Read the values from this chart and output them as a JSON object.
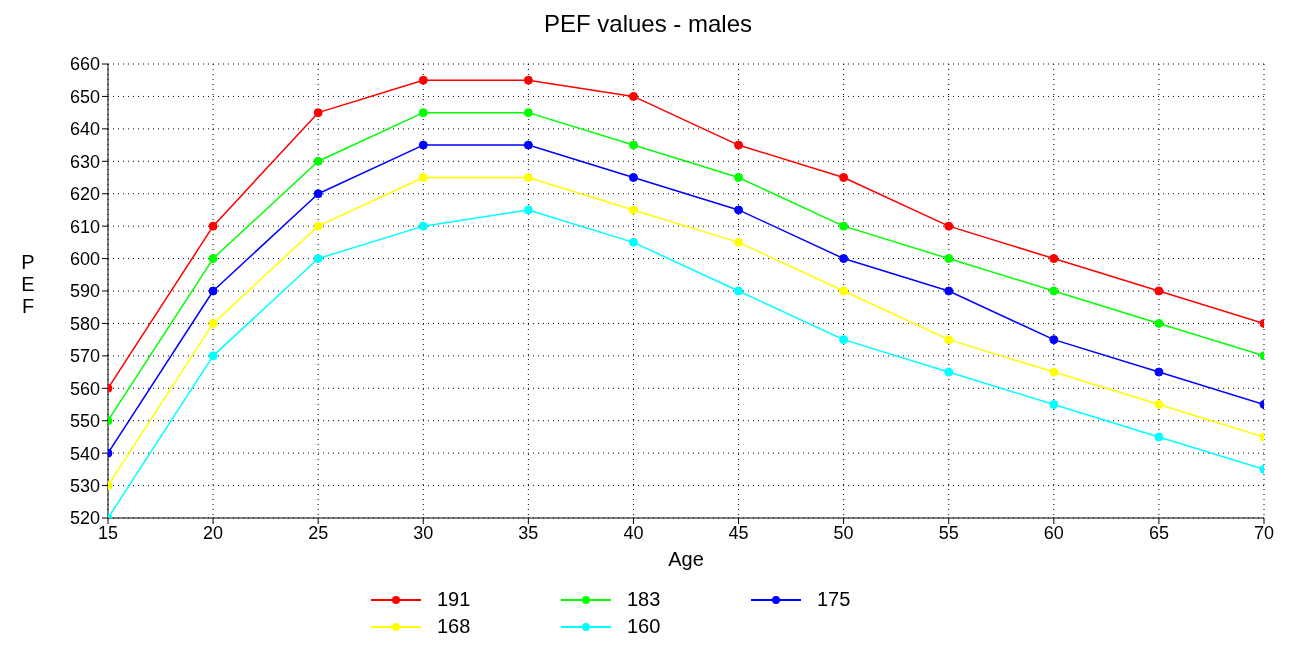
{
  "chart_data": {
    "type": "line",
    "title": "PEF values - males",
    "xlabel": "Age",
    "ylabel": "P E F",
    "x": [
      15,
      20,
      25,
      30,
      35,
      40,
      45,
      50,
      55,
      60,
      65,
      70
    ],
    "series": [
      {
        "name": "191",
        "color": "#ff0000",
        "values": [
          560,
          610,
          645,
          655,
          655,
          650,
          635,
          625,
          610,
          600,
          590,
          580
        ]
      },
      {
        "name": "183",
        "color": "#00ff00",
        "values": [
          550,
          600,
          630,
          645,
          645,
          635,
          625,
          610,
          600,
          590,
          580,
          570
        ]
      },
      {
        "name": "175",
        "color": "#0000ff",
        "values": [
          540,
          590,
          620,
          635,
          635,
          625,
          615,
          600,
          590,
          575,
          565,
          555
        ]
      },
      {
        "name": "168",
        "color": "#ffff00",
        "values": [
          530,
          580,
          610,
          625,
          625,
          615,
          605,
          590,
          575,
          565,
          555,
          545
        ]
      },
      {
        "name": "160",
        "color": "#00ffff",
        "values": [
          520,
          570,
          600,
          610,
          615,
          605,
          590,
          575,
          565,
          555,
          545,
          535
        ]
      }
    ],
    "xlim": [
      15,
      70
    ],
    "xticks": [
      15,
      20,
      25,
      30,
      35,
      40,
      45,
      50,
      55,
      60,
      65,
      70
    ],
    "ylim": [
      520,
      660
    ],
    "yticks": [
      520,
      530,
      540,
      550,
      560,
      570,
      580,
      590,
      600,
      610,
      620,
      630,
      640,
      650,
      660
    ],
    "grid": true,
    "legend": "bottom",
    "marker": "circle",
    "line_style": "solid"
  }
}
